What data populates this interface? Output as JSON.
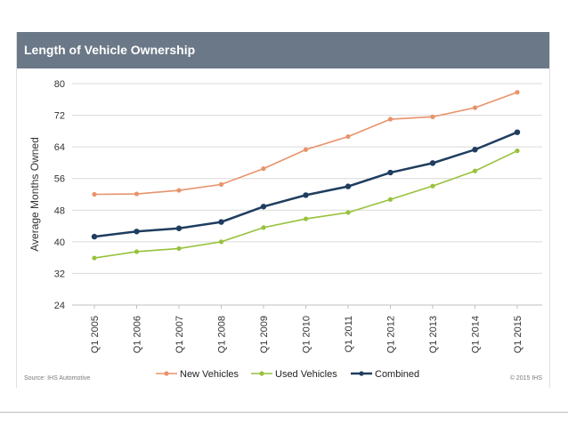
{
  "header": {
    "title": "Length of Vehicle Ownership"
  },
  "footer": {
    "source": "Source: IHS Automotive",
    "copyright": "© 2015 IHS"
  },
  "colors": {
    "header_bg": "#6b7887",
    "new": "#e8936a",
    "used": "#98c13c",
    "combined": "#1f3d5f"
  },
  "chart_data": {
    "type": "line",
    "title": "",
    "xlabel": "",
    "ylabel": "Average Months Owned",
    "ylim": [
      24,
      80
    ],
    "yticks": [
      24,
      32,
      40,
      48,
      56,
      64,
      72,
      80
    ],
    "categories": [
      "Q1 2005",
      "Q1 2006",
      "Q1 2007",
      "Q1 2008",
      "Q1 2009",
      "Q1 2010",
      "Q1 2011",
      "Q1 2012",
      "Q1 2013",
      "Q1 2014",
      "Q1 2015"
    ],
    "grid": true,
    "legend_position": "bottom",
    "series": [
      {
        "name": "New Vehicles",
        "color": "#e8936a",
        "values": [
          52.0,
          52.1,
          53.0,
          54.5,
          58.5,
          63.3,
          66.6,
          71.0,
          71.6,
          73.9,
          77.8
        ]
      },
      {
        "name": "Used Vehicles",
        "color": "#98c13c",
        "values": [
          35.9,
          37.5,
          38.3,
          40.0,
          43.6,
          45.8,
          47.4,
          50.7,
          54.1,
          57.9,
          63.0
        ]
      },
      {
        "name": "Combined",
        "color": "#1f3d5f",
        "values": [
          41.3,
          42.6,
          43.4,
          45.0,
          48.9,
          51.8,
          54.0,
          57.5,
          59.9,
          63.3,
          67.7
        ]
      }
    ]
  }
}
